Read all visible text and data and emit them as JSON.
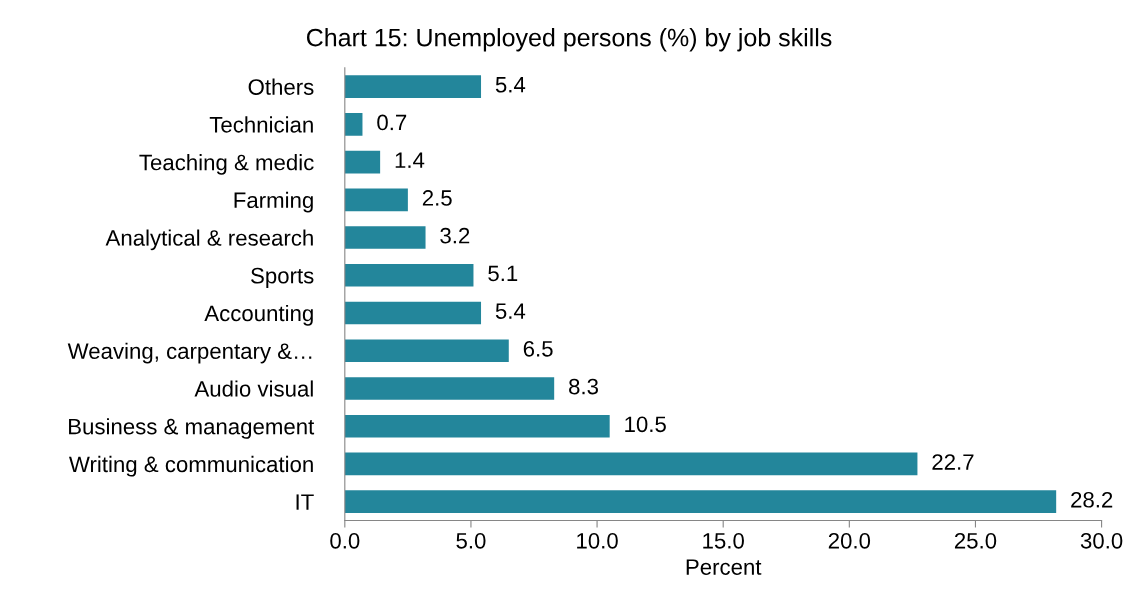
{
  "chart_data": {
    "type": "bar",
    "orientation": "horizontal",
    "title": "Chart 15: Unemployed persons (%) by job skills",
    "xlabel": "Percent",
    "categories": [
      "Others",
      "Technician",
      "Teaching & medic",
      "Farming",
      "Analytical & research",
      "Sports",
      "Accounting",
      "Weaving, carpentary &…",
      "Audio visual",
      "Business & management",
      "Writing & communication",
      "IT"
    ],
    "values": [
      5.4,
      0.7,
      1.4,
      2.5,
      3.2,
      5.1,
      5.4,
      6.5,
      8.3,
      10.5,
      22.7,
      28.2
    ],
    "color": "#23869b",
    "data_labels": true,
    "grid": false,
    "legend": false,
    "xlim": [
      0,
      30
    ],
    "xticks": [
      {
        "value": 0,
        "label": "0.0"
      },
      {
        "value": 5,
        "label": "5.0"
      },
      {
        "value": 10,
        "label": "10.0"
      },
      {
        "value": 15,
        "label": "15.0"
      },
      {
        "value": 20,
        "label": "20.0"
      },
      {
        "value": 25,
        "label": "25.0"
      },
      {
        "value": 30,
        "label": "30.0"
      }
    ]
  }
}
